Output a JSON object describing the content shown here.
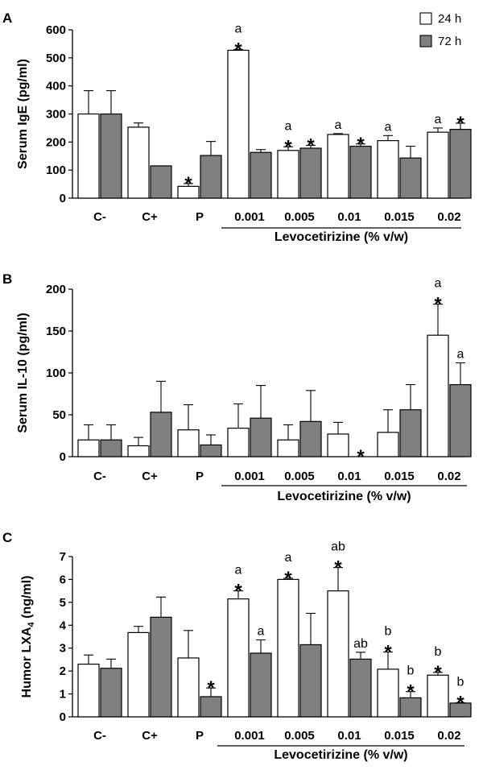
{
  "chart_data": [
    {
      "panel": "A",
      "type": "bar",
      "ylabel": "Serum IgE (pg/ml)",
      "ylim": [
        0,
        600
      ],
      "yticks": [
        0,
        100,
        200,
        300,
        400,
        500,
        600
      ],
      "categories": [
        "C-",
        "C+",
        "P",
        "0.001",
        "0.005",
        "0.01",
        "0.015",
        "0.02"
      ],
      "group_label": "Levocetirizine (% v/w)",
      "underlined_categories": [
        "0.001",
        "0.005",
        "0.01",
        "0.015",
        "0.02"
      ],
      "legend": {
        "placement": "top-right",
        "entries": [
          "24 h",
          "72 h"
        ]
      },
      "series": [
        {
          "name": "24 h",
          "color": "#ffffff",
          "values": [
            300,
            253,
            42,
            527,
            170,
            227,
            205,
            235
          ],
          "errors": [
            83,
            15,
            10,
            3,
            13,
            3,
            18,
            15
          ],
          "stars": [
            false,
            false,
            true,
            true,
            true,
            false,
            false,
            false
          ],
          "letters": [
            "",
            "",
            "",
            "a",
            "a",
            "a",
            "a",
            "a"
          ]
        },
        {
          "name": "72 h",
          "color": "#808080",
          "values": [
            300,
            115,
            152,
            163,
            178,
            185,
            143,
            245
          ],
          "errors": [
            83,
            0,
            50,
            10,
            10,
            8,
            42,
            22
          ],
          "stars": [
            false,
            false,
            false,
            false,
            true,
            true,
            false,
            true
          ],
          "letters": [
            "",
            "",
            "",
            "",
            "",
            "",
            "",
            ""
          ]
        }
      ]
    },
    {
      "panel": "B",
      "type": "bar",
      "ylabel": "Serum IL-10 (pg/ml)",
      "ylim": [
        0,
        200
      ],
      "yticks": [
        0,
        50,
        100,
        150,
        200
      ],
      "categories": [
        "C-",
        "C+",
        "P",
        "0.001",
        "0.005",
        "0.01",
        "0.015",
        "0.02"
      ],
      "group_label": "Levocetirizine (% v/w)",
      "underlined_categories": [
        "0.001",
        "0.005",
        "0.01",
        "0.015",
        "0.02"
      ],
      "series": [
        {
          "name": "24 h",
          "color": "#ffffff",
          "values": [
            20,
            13,
            32,
            34,
            20,
            27,
            29,
            145
          ],
          "errors": [
            18,
            10,
            30,
            29,
            18,
            14,
            27,
            37
          ],
          "stars": [
            false,
            false,
            false,
            false,
            false,
            false,
            false,
            true
          ],
          "letters": [
            "",
            "",
            "",
            "",
            "",
            "",
            "",
            "a"
          ]
        },
        {
          "name": "72 h",
          "color": "#808080",
          "values": [
            20,
            53,
            14,
            46,
            42,
            0,
            56,
            86
          ],
          "errors": [
            18,
            37,
            12,
            39,
            37,
            0,
            30,
            26
          ],
          "stars": [
            false,
            false,
            false,
            false,
            false,
            true,
            false,
            false
          ],
          "letters": [
            "",
            "",
            "",
            "",
            "",
            "",
            "",
            "a"
          ]
        }
      ]
    },
    {
      "panel": "C",
      "type": "bar",
      "ylabel": "Humor LXA",
      "ylabel_subscript": "4",
      "ylabel_unit": " (ng/ml)",
      "ylim": [
        0,
        7
      ],
      "yticks": [
        0,
        1,
        2,
        3,
        4,
        5,
        6,
        7
      ],
      "categories": [
        "C-",
        "C+",
        "P",
        "0.001",
        "0.005",
        "0.01",
        "0.015",
        "0.02"
      ],
      "group_label": "Levocetirizine (% v/w)",
      "underlined_categories": [
        "0.001",
        "0.005",
        "0.01",
        "0.015",
        "0.02"
      ],
      "series": [
        {
          "name": "24 h",
          "color": "#ffffff",
          "values": [
            2.3,
            3.68,
            2.57,
            5.15,
            6.0,
            5.5,
            2.08,
            1.82
          ],
          "errors": [
            0.4,
            0.27,
            1.2,
            0.35,
            0.05,
            1.02,
            0.75,
            0.12
          ],
          "stars": [
            false,
            false,
            false,
            true,
            true,
            true,
            true,
            true
          ],
          "letters": [
            "",
            "",
            "",
            "a",
            "a",
            "ab",
            "b",
            "b"
          ]
        },
        {
          "name": "72 h",
          "color": "#808080",
          "values": [
            2.12,
            4.35,
            0.88,
            2.78,
            3.15,
            2.52,
            0.83,
            0.6
          ],
          "errors": [
            0.4,
            0.88,
            0.38,
            0.58,
            1.37,
            0.3,
            0.27,
            0.02
          ],
          "stars": [
            false,
            false,
            true,
            false,
            false,
            false,
            true,
            true
          ],
          "letters": [
            "",
            "",
            "",
            "a",
            "",
            "ab",
            "b",
            "b"
          ]
        }
      ]
    }
  ]
}
